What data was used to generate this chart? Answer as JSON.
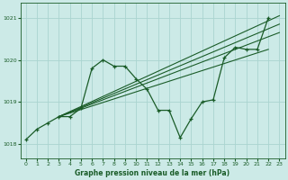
{
  "title": "Graphe pression niveau de la mer (hPa)",
  "background_color": "#cceae7",
  "grid_color": "#aad4d0",
  "line_color": "#1a5c28",
  "xlim": [
    -0.5,
    23.5
  ],
  "ylim": [
    1017.65,
    1021.35
  ],
  "yticks": [
    1018,
    1019,
    1020,
    1021
  ],
  "xticks": [
    0,
    1,
    2,
    3,
    4,
    5,
    6,
    7,
    8,
    9,
    10,
    11,
    12,
    13,
    14,
    15,
    16,
    17,
    18,
    19,
    20,
    21,
    22,
    23
  ],
  "x_main": [
    0,
    1,
    2,
    3,
    4,
    5,
    6,
    7,
    8,
    9,
    10,
    11,
    12,
    13,
    14,
    15,
    16,
    17,
    18,
    19,
    20,
    21,
    22
  ],
  "y_main": [
    1018.1,
    1018.35,
    1018.5,
    1018.65,
    1018.65,
    1018.85,
    1019.8,
    1020.0,
    1019.85,
    1019.85,
    1019.55,
    1019.3,
    1018.8,
    1018.8,
    1018.15,
    1018.6,
    1019.0,
    1019.05,
    1020.05,
    1020.3,
    1020.25,
    1020.25,
    1021.0
  ],
  "forecast_lines": [
    {
      "x": [
        3,
        23
      ],
      "y": [
        1018.65,
        1021.05
      ]
    },
    {
      "x": [
        3,
        23
      ],
      "y": [
        1018.65,
        1020.85
      ]
    },
    {
      "x": [
        3,
        23
      ],
      "y": [
        1018.65,
        1020.65
      ]
    },
    {
      "x": [
        3,
        22
      ],
      "y": [
        1018.65,
        1020.25
      ]
    }
  ]
}
